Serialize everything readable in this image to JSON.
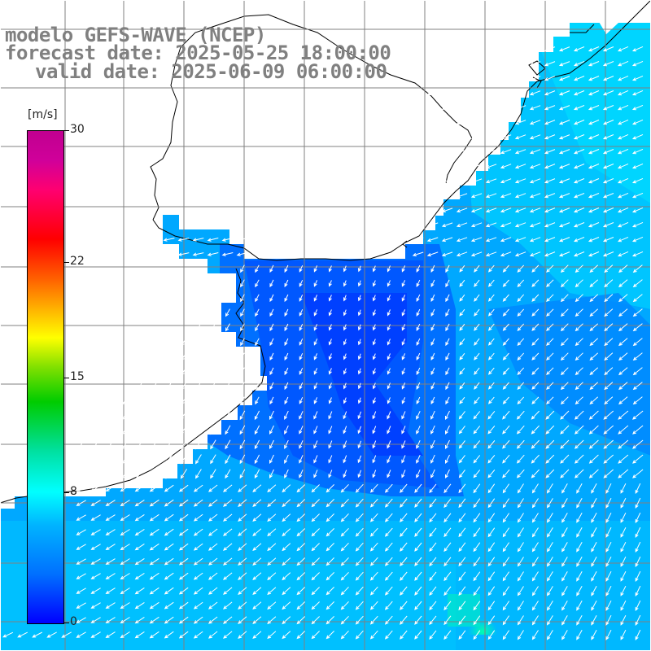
{
  "title": {
    "model": "modelo GEFS-WAVE (NCEP)",
    "forecast": "forecast date: 2025-05-25 18:00:00",
    "valid": "valid date: 2025-06-09 06:00:00"
  },
  "colorbar": {
    "unit": "[m/s]",
    "ticks": [
      {
        "value": 30,
        "label": "30"
      },
      {
        "value": 22,
        "label": "22"
      },
      {
        "value": 15,
        "label": "15"
      },
      {
        "value": 8,
        "label": "8"
      },
      {
        "value": 0,
        "label": "0"
      }
    ],
    "min": 0,
    "max": 30
  },
  "colors": {
    "land": "#ffffff",
    "arrow": "#ffffff",
    "coast": "#000000",
    "grid": "#808080"
  },
  "map_features": {
    "variable": "wind speed with direction arrows",
    "region": "Rio de la Plata estuary and adjacent South Atlantic",
    "land_side": "north-west"
  }
}
